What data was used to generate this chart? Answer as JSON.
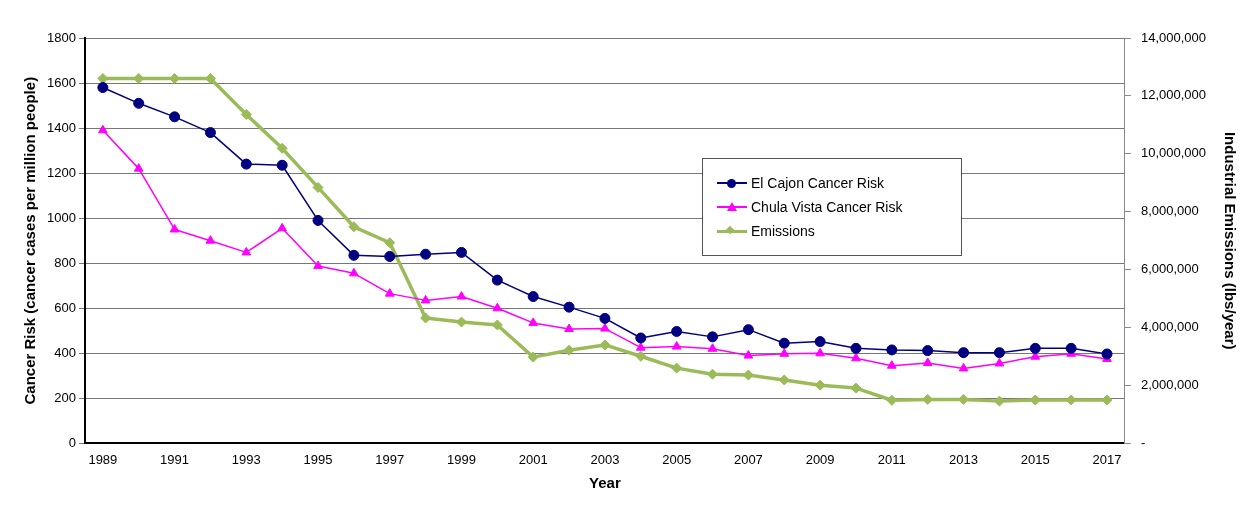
{
  "chart_data": {
    "type": "line",
    "categories": [
      "1989",
      null,
      "1991",
      null,
      "1993",
      null,
      "1995",
      null,
      "1997",
      null,
      "1999",
      null,
      "2001",
      null,
      "2003",
      null,
      "2005",
      null,
      "2007",
      null,
      "2009",
      null,
      "2011",
      null,
      "2013",
      null,
      "2015",
      null,
      "2017"
    ],
    "xlabel": "Year",
    "ylabel": "Cancer Risk (cancer cases per million people)",
    "y2label": "Industrial Emissions (lbs/year)",
    "ylim": [
      0,
      1800
    ],
    "yticks": [
      0,
      200,
      400,
      600,
      800,
      1000,
      1200,
      1400,
      1600,
      1800
    ],
    "y2lim": [
      0,
      14000000
    ],
    "y2ticks": [
      {
        "value": 0,
        "label": "-"
      },
      {
        "value": 2000000,
        "label": "2,000,000"
      },
      {
        "value": 4000000,
        "label": "4,000,000"
      },
      {
        "value": 6000000,
        "label": "6,000,000"
      },
      {
        "value": 8000000,
        "label": "8,000,000"
      },
      {
        "value": 10000000,
        "label": "10,000,000"
      },
      {
        "value": 12000000,
        "label": "12,000,000"
      },
      {
        "value": 14000000,
        "label": "14,000,000"
      }
    ],
    "grid": "y",
    "legend": "right",
    "series": [
      {
        "name": "El Cajon Cancer Risk",
        "color": "#000080",
        "marker": "circle",
        "values": [
          1580,
          1510,
          1450,
          1380,
          1240,
          1235,
          990,
          835,
          830,
          840,
          848,
          725,
          652,
          605,
          555,
          468,
          497,
          473,
          505,
          445,
          452,
          422,
          415,
          412,
          403,
          403,
          422,
          422,
          397
        ]
      },
      {
        "name": "Chula Vista Cancer Risk",
        "color": "#ff00ff",
        "marker": "triangle",
        "values": [
          1390,
          1220,
          950,
          900,
          848,
          955,
          788,
          755,
          665,
          635,
          652,
          600,
          535,
          508,
          510,
          425,
          430,
          420,
          390,
          398,
          400,
          378,
          345,
          357,
          333,
          355,
          385,
          398,
          375
        ]
      },
      {
        "name": "Emissions",
        "color": "#9bbb59",
        "marker": "diamond",
        "axis": "y2",
        "values": [
          12600000,
          12600000,
          12600000,
          12600000,
          11360000,
          10190000,
          8840000,
          7480000,
          6930000,
          4330000,
          4190000,
          4090000,
          2980000,
          3220000,
          3400000,
          3010000,
          2600000,
          2390000,
          2360000,
          2190000,
          2010000,
          1910000,
          1490000,
          1520000,
          1520000,
          1460000,
          1500000,
          1500000,
          1500000
        ]
      }
    ]
  }
}
